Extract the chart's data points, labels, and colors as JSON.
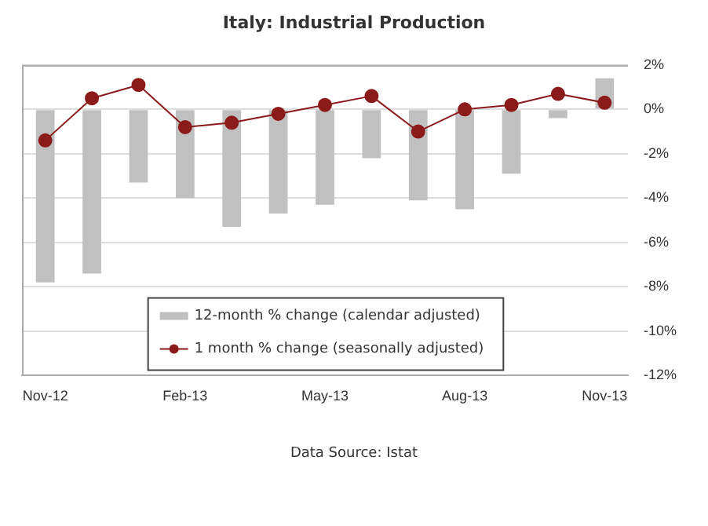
{
  "chart_data": {
    "type": "bar",
    "title": "Italy: Industrial Production",
    "annotations": [
      "Data Source: Istat"
    ],
    "categories": [
      "Nov-12",
      null,
      null,
      "Feb-13",
      null,
      null,
      "May-13",
      null,
      null,
      "Aug-13",
      null,
      null,
      "Nov-13"
    ],
    "series": [
      {
        "name": "12-month % change (calendar adjusted)",
        "color": "#c0c0c0",
        "values": [
          -7.8,
          -7.4,
          -3.3,
          -4.0,
          -5.3,
          -4.7,
          -4.3,
          -2.2,
          -4.1,
          -4.5,
          -2.9,
          -0.4,
          1.4
        ]
      },
      {
        "name": "1 month % change (seasonally adjusted)",
        "type": "line",
        "color": "#8b1a1a",
        "marker": "circle",
        "values": [
          -1.4,
          0.5,
          1.1,
          -0.8,
          -0.6,
          -0.2,
          0.2,
          0.6,
          -1.0,
          0.0,
          0.2,
          0.7,
          0.3
        ]
      }
    ],
    "ylim": [
      -12,
      2
    ],
    "yticks": [
      {
        "value": -12,
        "label": "-12%"
      },
      {
        "value": -10,
        "label": "-10%"
      },
      {
        "value": -8,
        "label": "-8%"
      },
      {
        "value": -6,
        "label": "-6%"
      },
      {
        "value": -4,
        "label": "-4%"
      },
      {
        "value": -2,
        "label": "-2%"
      },
      {
        "value": 0,
        "label": "0%"
      },
      {
        "value": 2,
        "label": "2%"
      }
    ],
    "grid": "y",
    "legend": "bottom"
  }
}
